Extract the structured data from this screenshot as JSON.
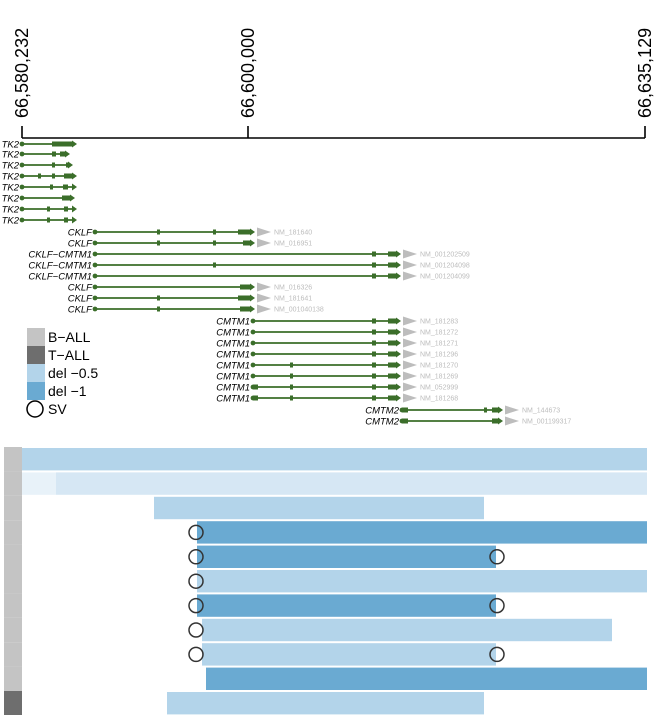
{
  "axis": {
    "ticks": [
      "66,580,232",
      "66,600,000",
      "66,635,129"
    ],
    "colors": {
      "axis": "#000000"
    }
  },
  "transcripts": [
    {
      "gene": "TK2",
      "accession": ""
    },
    {
      "gene": "TK2",
      "accession": ""
    },
    {
      "gene": "TK2",
      "accession": ""
    },
    {
      "gene": "TK2",
      "accession": ""
    },
    {
      "gene": "TK2",
      "accession": ""
    },
    {
      "gene": "TK2",
      "accession": ""
    },
    {
      "gene": "TK2",
      "accession": ""
    },
    {
      "gene": "TK2",
      "accession": ""
    },
    {
      "gene": "CKLF",
      "accession": "NM_181640"
    },
    {
      "gene": "CKLF",
      "accession": "NM_016951"
    },
    {
      "gene": "CKLF−CMTM1",
      "accession": "NM_001202509"
    },
    {
      "gene": "CKLF−CMTM1",
      "accession": "NM_001204098"
    },
    {
      "gene": "CKLF−CMTM1",
      "accession": "NM_001204099"
    },
    {
      "gene": "CKLF",
      "accession": "NM_016326"
    },
    {
      "gene": "CKLF",
      "accession": "NM_181641"
    },
    {
      "gene": "CKLF",
      "accession": "NM_001040138"
    },
    {
      "gene": "CMTM1",
      "accession": "NM_181283"
    },
    {
      "gene": "CMTM1",
      "accession": "NM_181272"
    },
    {
      "gene": "CMTM1",
      "accession": "NM_181271"
    },
    {
      "gene": "CMTM1",
      "accession": "NM_181296"
    },
    {
      "gene": "CMTM1",
      "accession": "NM_181270"
    },
    {
      "gene": "CMTM1",
      "accession": "NM_181269"
    },
    {
      "gene": "CMTM1",
      "accession": "NM_052999"
    },
    {
      "gene": "CMTM1",
      "accession": "NM_181268"
    },
    {
      "gene": "CMTM2",
      "accession": "NM_144673"
    },
    {
      "gene": "CMTM2",
      "accession": "NM_001199317"
    }
  ],
  "legend": [
    {
      "label": "B−ALL",
      "color": "#c4c4c4",
      "symbol": "square"
    },
    {
      "label": "T−ALL",
      "color": "#6e6e6e",
      "symbol": "square"
    },
    {
      "label": "del −0.5",
      "color": "#b3d4ea",
      "symbol": "square"
    },
    {
      "label": "del −1",
      "color": "#6aaad2",
      "symbol": "square"
    },
    {
      "label": "SV",
      "color": "#000000",
      "symbol": "circle"
    }
  ],
  "samples": [
    {
      "type": "B-ALL",
      "deletion": -0.5,
      "sv_left": false,
      "sv_right": false
    },
    {
      "type": "B-ALL",
      "deletion": -0.3,
      "sv_left": false,
      "sv_right": false
    },
    {
      "type": "B-ALL",
      "deletion": -0.5,
      "sv_left": false,
      "sv_right": false
    },
    {
      "type": "B-ALL",
      "deletion": -1,
      "sv_left": true,
      "sv_right": false
    },
    {
      "type": "B-ALL",
      "deletion": -1,
      "sv_left": true,
      "sv_right": true
    },
    {
      "type": "B-ALL",
      "deletion": -0.5,
      "sv_left": true,
      "sv_right": false
    },
    {
      "type": "B-ALL",
      "deletion": -1,
      "sv_left": true,
      "sv_right": true
    },
    {
      "type": "B-ALL",
      "deletion": -0.5,
      "sv_left": true,
      "sv_right": false
    },
    {
      "type": "B-ALL",
      "deletion": -0.5,
      "sv_left": true,
      "sv_right": true
    },
    {
      "type": "B-ALL",
      "deletion": -1,
      "sv_left": false,
      "sv_right": false
    },
    {
      "type": "T-ALL",
      "deletion": -0.5,
      "sv_left": false,
      "sv_right": false
    }
  ],
  "colors": {
    "transcript": "#3b6e2a",
    "accession_arrow": "#bdbdbd",
    "del_light": "#d6e7f4",
    "del_mid": "#b3d4ea",
    "del_strong": "#6aaad2",
    "ball": "#c4c4c4",
    "tall": "#6e6e6e"
  }
}
